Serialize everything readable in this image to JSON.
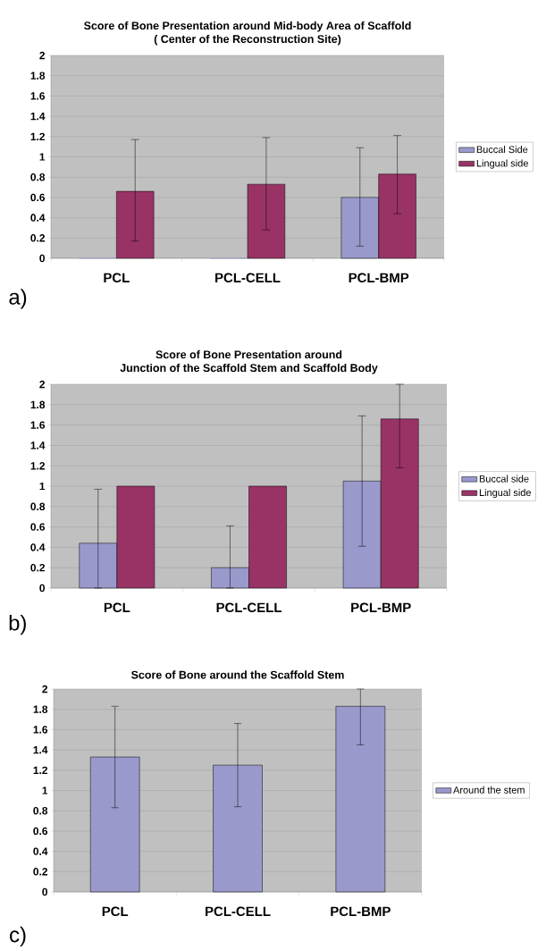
{
  "chart_data": [
    {
      "type": "bar",
      "title": "Score of Bone Presentation around Mid-body Area of Scaffold\n( Center of the Reconstruction Site)",
      "categories": [
        "PCL",
        "PCL-CELL",
        "PCL-BMP"
      ],
      "series": [
        {
          "name": "Buccal Side",
          "color": "#9999cc",
          "values": [
            0,
            0,
            0.6
          ],
          "errors": [
            null,
            null,
            [
              0.12,
              1.09
            ]
          ]
        },
        {
          "name": "Lingual side",
          "color": "#993366",
          "values": [
            0.66,
            0.73,
            0.83
          ],
          "errors": [
            [
              0.17,
              1.17
            ],
            [
              0.28,
              1.19
            ],
            [
              0.44,
              1.21
            ]
          ]
        }
      ],
      "ylim": [
        0,
        2
      ],
      "yticks": [
        0,
        0.2,
        0.4,
        0.6,
        0.8,
        1,
        1.2,
        1.4,
        1.6,
        1.8,
        2
      ],
      "grid": "y",
      "legend": "right",
      "annotations": [
        "a)"
      ]
    },
    {
      "type": "bar",
      "title": "Score of Bone Presentation around\nJunction of the Scaffold Stem and Scaffold Body",
      "categories": [
        "PCL",
        "PCL-CELL",
        "PCL-BMP"
      ],
      "series": [
        {
          "name": "Buccal side",
          "color": "#9999cc",
          "values": [
            0.44,
            0.2,
            1.05
          ],
          "errors": [
            [
              0,
              0.97
            ],
            [
              0,
              0.61
            ],
            [
              0.41,
              1.69
            ]
          ]
        },
        {
          "name": "Lingual side",
          "color": "#993366",
          "values": [
            1,
            1,
            1.66
          ],
          "errors": [
            null,
            null,
            [
              1.18,
              2
            ]
          ]
        }
      ],
      "ylim": [
        0,
        2
      ],
      "yticks": [
        0,
        0.2,
        0.4,
        0.6,
        0.8,
        1,
        1.2,
        1.4,
        1.6,
        1.8,
        2
      ],
      "grid": "y",
      "legend": "right",
      "annotations": [
        "b)"
      ]
    },
    {
      "type": "bar",
      "title": "Score of Bone around the Scaffold Stem",
      "categories": [
        "PCL",
        "PCL-CELL",
        "PCL-BMP"
      ],
      "series": [
        {
          "name": "Around the stem",
          "color": "#9999cc",
          "values": [
            1.33,
            1.25,
            1.83
          ],
          "errors": [
            [
              0.83,
              1.83
            ],
            [
              0.84,
              1.66
            ],
            [
              1.45,
              2
            ]
          ]
        }
      ],
      "ylim": [
        0,
        2
      ],
      "yticks": [
        0,
        0.2,
        0.4,
        0.6,
        0.8,
        1,
        1.2,
        1.4,
        1.6,
        1.8,
        2
      ],
      "grid": "y",
      "legend": "right",
      "annotations": [
        "c)"
      ]
    }
  ]
}
